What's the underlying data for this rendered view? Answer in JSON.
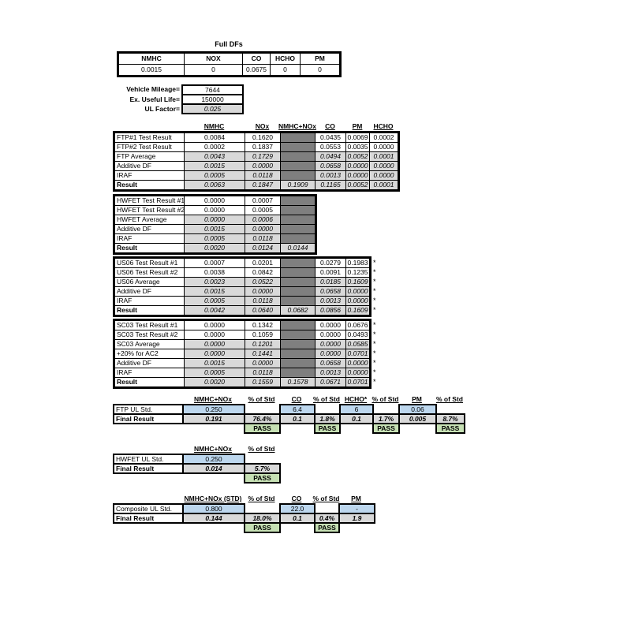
{
  "colors": {
    "highlight_blue": "#BDD7EE",
    "calculated_gray": "#D9D9D9",
    "blocked_dark_gray": "#7F7F7F",
    "pass_green": "#C6E0B4",
    "border_black": "#000000"
  },
  "full_dfs": {
    "title": "Full DFs",
    "headers": [
      "NMHC",
      "NOX",
      "CO",
      "HCHO",
      "PM"
    ],
    "values": [
      "0.0015",
      "0",
      "0.0675",
      "0",
      "0"
    ]
  },
  "vehicle_info": {
    "rows": [
      {
        "label": "Vehicle Mileage=",
        "value": "7644",
        "s": "w"
      },
      {
        "label": "Ex. Useful Life=",
        "value": "150000",
        "s": "w"
      },
      {
        "label": "UL Factor=",
        "value": "0.025",
        "s": "g"
      }
    ]
  },
  "emissions_columns": [
    "NMHC",
    "NOx",
    "NMHC+NOx",
    "CO",
    "PM",
    "HCHO"
  ],
  "test_tables": [
    {
      "name": "FTP",
      "rows": [
        {
          "label": "FTP#1 Test Result",
          "bold": false,
          "star": "",
          "cells": [
            {
              "v": "0.0084",
              "s": "w"
            },
            {
              "v": "0.1620",
              "s": "w"
            },
            {
              "v": "",
              "s": "d"
            },
            {
              "v": "0.0435",
              "s": "w"
            },
            {
              "v": "0.0069",
              "s": "w"
            },
            {
              "v": "0.0002",
              "s": "w"
            }
          ]
        },
        {
          "label": "FTP#2 Test Result",
          "bold": false,
          "star": "",
          "cells": [
            {
              "v": "0.0002",
              "s": "w"
            },
            {
              "v": "0.1837",
              "s": "w"
            },
            {
              "v": "",
              "s": "d"
            },
            {
              "v": "0.0553",
              "s": "w"
            },
            {
              "v": "0.0035",
              "s": "w"
            },
            {
              "v": "0.0000",
              "s": "w"
            }
          ]
        },
        {
          "label": "FTP Average",
          "bold": false,
          "star": "",
          "cells": [
            {
              "v": "0.0043",
              "s": "g"
            },
            {
              "v": "0.1729",
              "s": "g"
            },
            {
              "v": "",
              "s": "d"
            },
            {
              "v": "0.0494",
              "s": "g"
            },
            {
              "v": "0.0052",
              "s": "g"
            },
            {
              "v": "0.0001",
              "s": "g"
            }
          ]
        },
        {
          "label": "Additive DF",
          "bold": false,
          "star": "",
          "cells": [
            {
              "v": "0.0015",
              "s": "g"
            },
            {
              "v": "0.0000",
              "s": "g"
            },
            {
              "v": "",
              "s": "d"
            },
            {
              "v": "0.0658",
              "s": "g"
            },
            {
              "v": "0.0000",
              "s": "g"
            },
            {
              "v": "0.0000",
              "s": "g"
            }
          ]
        },
        {
          "label": "IRAF",
          "bold": false,
          "star": "",
          "cells": [
            {
              "v": "0.0005",
              "s": "g"
            },
            {
              "v": "0.0118",
              "s": "g"
            },
            {
              "v": "",
              "s": "d"
            },
            {
              "v": "0.0013",
              "s": "g"
            },
            {
              "v": "0.0000",
              "s": "g"
            },
            {
              "v": "0.0000",
              "s": "g"
            }
          ]
        },
        {
          "label": "Result",
          "bold": true,
          "star": "",
          "cells": [
            {
              "v": "0.0063",
              "s": "g"
            },
            {
              "v": "0.1847",
              "s": "g"
            },
            {
              "v": "0.1909",
              "s": "g"
            },
            {
              "v": "0.1165",
              "s": "g"
            },
            {
              "v": "0.0052",
              "s": "g"
            },
            {
              "v": "0.0001",
              "s": "g"
            }
          ]
        }
      ]
    },
    {
      "name": "HWFET",
      "rows": [
        {
          "label": "HWFET Test Result #1",
          "bold": false,
          "star": "",
          "cells": [
            {
              "v": "0.0000",
              "s": "w"
            },
            {
              "v": "0.0007",
              "s": "w"
            },
            {
              "v": "",
              "s": "d"
            }
          ]
        },
        {
          "label": "HWFET Test Result #2",
          "bold": false,
          "star": "",
          "cells": [
            {
              "v": "0.0000",
              "s": "w"
            },
            {
              "v": "0.0005",
              "s": "w"
            },
            {
              "v": "",
              "s": "d"
            }
          ]
        },
        {
          "label": "HWFET Average",
          "bold": false,
          "star": "",
          "cells": [
            {
              "v": "0.0000",
              "s": "g"
            },
            {
              "v": "0.0006",
              "s": "g"
            },
            {
              "v": "",
              "s": "d"
            }
          ]
        },
        {
          "label": "Additive DF",
          "bold": false,
          "star": "",
          "cells": [
            {
              "v": "0.0015",
              "s": "g"
            },
            {
              "v": "0.0000",
              "s": "g"
            },
            {
              "v": "",
              "s": "d"
            }
          ]
        },
        {
          "label": "IRAF",
          "bold": false,
          "star": "",
          "cells": [
            {
              "v": "0.0005",
              "s": "g"
            },
            {
              "v": "0.0118",
              "s": "g"
            },
            {
              "v": "",
              "s": "d"
            }
          ]
        },
        {
          "label": "Result",
          "bold": true,
          "star": "",
          "cells": [
            {
              "v": "0.0020",
              "s": "g"
            },
            {
              "v": "0.0124",
              "s": "g"
            },
            {
              "v": "0.0144",
              "s": "g"
            }
          ]
        }
      ]
    },
    {
      "name": "US06",
      "rows": [
        {
          "label": "US06 Test Result #1",
          "bold": false,
          "star": "*",
          "cells": [
            {
              "v": "0.0007",
              "s": "w"
            },
            {
              "v": "0.0201",
              "s": "w"
            },
            {
              "v": "",
              "s": "d"
            },
            {
              "v": "0.0279",
              "s": "w"
            },
            {
              "v": "0.1983",
              "s": "w"
            }
          ]
        },
        {
          "label": "US06 Test Result #2",
          "bold": false,
          "star": "*",
          "cells": [
            {
              "v": "0.0038",
              "s": "w"
            },
            {
              "v": "0.0842",
              "s": "w"
            },
            {
              "v": "",
              "s": "d"
            },
            {
              "v": "0.0091",
              "s": "w"
            },
            {
              "v": "0.1235",
              "s": "w"
            }
          ]
        },
        {
          "label": "US06 Average",
          "bold": false,
          "star": "*",
          "cells": [
            {
              "v": "0.0023",
              "s": "g"
            },
            {
              "v": "0.0522",
              "s": "g"
            },
            {
              "v": "",
              "s": "d"
            },
            {
              "v": "0.0185",
              "s": "g"
            },
            {
              "v": "0.1609",
              "s": "g"
            }
          ]
        },
        {
          "label": "Additive DF",
          "bold": false,
          "star": "*",
          "cells": [
            {
              "v": "0.0015",
              "s": "g"
            },
            {
              "v": "0.0000",
              "s": "g"
            },
            {
              "v": "",
              "s": "d"
            },
            {
              "v": "0.0658",
              "s": "g"
            },
            {
              "v": "0.0000",
              "s": "g"
            }
          ]
        },
        {
          "label": "IRAF",
          "bold": false,
          "star": "*",
          "cells": [
            {
              "v": "0.0005",
              "s": "g"
            },
            {
              "v": "0.0118",
              "s": "g"
            },
            {
              "v": "",
              "s": "d"
            },
            {
              "v": "0.0013",
              "s": "g"
            },
            {
              "v": "0.0000",
              "s": "g"
            }
          ]
        },
        {
          "label": "Result",
          "bold": true,
          "star": "*",
          "cells": [
            {
              "v": "0.0042",
              "s": "g"
            },
            {
              "v": "0.0640",
              "s": "g"
            },
            {
              "v": "0.0682",
              "s": "g"
            },
            {
              "v": "0.0856",
              "s": "g"
            },
            {
              "v": "0.1609",
              "s": "g"
            }
          ]
        }
      ]
    },
    {
      "name": "SC03",
      "rows": [
        {
          "label": "SC03 Test Result #1",
          "bold": false,
          "star": "*",
          "cells": [
            {
              "v": "0.0000",
              "s": "w"
            },
            {
              "v": "0.1342",
              "s": "w"
            },
            {
              "v": "",
              "s": "d"
            },
            {
              "v": "0.0000",
              "s": "w"
            },
            {
              "v": "0.0676",
              "s": "w"
            }
          ]
        },
        {
          "label": "SC03 Test Result #2",
          "bold": false,
          "star": "*",
          "cells": [
            {
              "v": "0.0000",
              "s": "w"
            },
            {
              "v": "0.1059",
              "s": "w"
            },
            {
              "v": "",
              "s": "d"
            },
            {
              "v": "0.0000",
              "s": "w"
            },
            {
              "v": "0.0493",
              "s": "w"
            }
          ]
        },
        {
          "label": "SC03 Average",
          "bold": false,
          "star": "*",
          "cells": [
            {
              "v": "0.0000",
              "s": "g"
            },
            {
              "v": "0.1201",
              "s": "g"
            },
            {
              "v": "",
              "s": "d"
            },
            {
              "v": "0.0000",
              "s": "g"
            },
            {
              "v": "0.0585",
              "s": "g"
            }
          ]
        },
        {
          "label": "+20% for AC2",
          "bold": false,
          "star": "*",
          "cells": [
            {
              "v": "0.0000",
              "s": "g"
            },
            {
              "v": "0.1441",
              "s": "g"
            },
            {
              "v": "",
              "s": "d"
            },
            {
              "v": "0.0000",
              "s": "g"
            },
            {
              "v": "0.0701",
              "s": "g"
            }
          ]
        },
        {
          "label": "Additive DF",
          "bold": false,
          "star": "*",
          "cells": [
            {
              "v": "0.0015",
              "s": "g"
            },
            {
              "v": "0.0000",
              "s": "g"
            },
            {
              "v": "",
              "s": "d"
            },
            {
              "v": "0.0658",
              "s": "g"
            },
            {
              "v": "0.0000",
              "s": "g"
            }
          ]
        },
        {
          "label": "IRAF",
          "bold": false,
          "star": "*",
          "cells": [
            {
              "v": "0.0005",
              "s": "g"
            },
            {
              "v": "0.0118",
              "s": "g"
            },
            {
              "v": "",
              "s": "d"
            },
            {
              "v": "0.0013",
              "s": "g"
            },
            {
              "v": "0.0000",
              "s": "g"
            }
          ]
        },
        {
          "label": "Result",
          "bold": true,
          "star": "*",
          "cells": [
            {
              "v": "0.0020",
              "s": "g"
            },
            {
              "v": "0.1559",
              "s": "g"
            },
            {
              "v": "0.1578",
              "s": "g"
            },
            {
              "v": "0.0671",
              "s": "g"
            },
            {
              "v": "0.0701",
              "s": "g"
            }
          ]
        }
      ]
    }
  ],
  "standards_tables": [
    {
      "name": "FTP UL",
      "headers": [
        "NMHC+NOx",
        "% of Std",
        "CO",
        "% of Std",
        "HCHO*",
        "% of Std",
        "PM",
        "% of Std"
      ],
      "rows": [
        {
          "label": "FTP UL Std.",
          "bold": false,
          "cells": [
            {
              "v": "0.250",
              "s": "b"
            },
            {
              "v": "",
              "s": "x"
            },
            {
              "v": "6.4",
              "s": "b"
            },
            {
              "v": "",
              "s": "x"
            },
            {
              "v": "6",
              "s": "b"
            },
            {
              "v": "",
              "s": "x"
            },
            {
              "v": "0.06",
              "s": "b"
            },
            {
              "v": "",
              "s": "x"
            }
          ]
        },
        {
          "label": "Final Result",
          "bold": true,
          "cells": [
            {
              "v": "0.191",
              "s": "gb"
            },
            {
              "v": "76.4%",
              "s": "gb"
            },
            {
              "v": "0.1",
              "s": "gb"
            },
            {
              "v": "1.8%",
              "s": "gb"
            },
            {
              "v": "0.1",
              "s": "gb"
            },
            {
              "v": "1.7%",
              "s": "gb"
            },
            {
              "v": "0.005",
              "s": "gb"
            },
            {
              "v": "8.7%",
              "s": "gb"
            }
          ]
        },
        {
          "label": "",
          "bold": false,
          "cells": [
            {
              "v": "",
              "s": "x"
            },
            {
              "v": "PASS",
              "s": "p"
            },
            {
              "v": "",
              "s": "x"
            },
            {
              "v": "PASS",
              "s": "p"
            },
            {
              "v": "",
              "s": "x"
            },
            {
              "v": "PASS",
              "s": "p"
            },
            {
              "v": "",
              "s": "x"
            },
            {
              "v": "PASS",
              "s": "p"
            }
          ]
        }
      ]
    },
    {
      "name": "HWFET UL",
      "headers": [
        "NMHC+NOx",
        "% of Std"
      ],
      "rows": [
        {
          "label": "HWFET UL Std.",
          "bold": false,
          "cells": [
            {
              "v": "0.250",
              "s": "b"
            },
            {
              "v": "",
              "s": "x"
            }
          ]
        },
        {
          "label": "Final Result",
          "bold": true,
          "cells": [
            {
              "v": "0.014",
              "s": "gb"
            },
            {
              "v": "5.7%",
              "s": "gb"
            }
          ]
        },
        {
          "label": "",
          "bold": false,
          "cells": [
            {
              "v": "",
              "s": "x"
            },
            {
              "v": "PASS",
              "s": "p"
            }
          ]
        }
      ]
    },
    {
      "name": "Composite",
      "headers": [
        "NMHC+NOx (STD)",
        "% of Std",
        "CO",
        "% of Std",
        "PM"
      ],
      "rows": [
        {
          "label": "Composite UL Std.",
          "bold": false,
          "cells": [
            {
              "v": "0.800",
              "s": "b"
            },
            {
              "v": "",
              "s": "x"
            },
            {
              "v": "22.0",
              "s": "b"
            },
            {
              "v": "",
              "s": "x"
            },
            {
              "v": "-",
              "s": "b"
            }
          ]
        },
        {
          "label": "Final Result",
          "bold": true,
          "cells": [
            {
              "v": "0.144",
              "s": "gb"
            },
            {
              "v": "18.0%",
              "s": "gb"
            },
            {
              "v": "0.1",
              "s": "gb"
            },
            {
              "v": "0.4%",
              "s": "gb"
            },
            {
              "v": "1.9",
              "s": "gb"
            }
          ]
        },
        {
          "label": "",
          "bold": false,
          "cells": [
            {
              "v": "",
              "s": "x"
            },
            {
              "v": "PASS",
              "s": "p"
            },
            {
              "v": "",
              "s": "x"
            },
            {
              "v": "PASS",
              "s": "p"
            },
            {
              "v": "",
              "s": "x"
            }
          ]
        }
      ]
    }
  ]
}
